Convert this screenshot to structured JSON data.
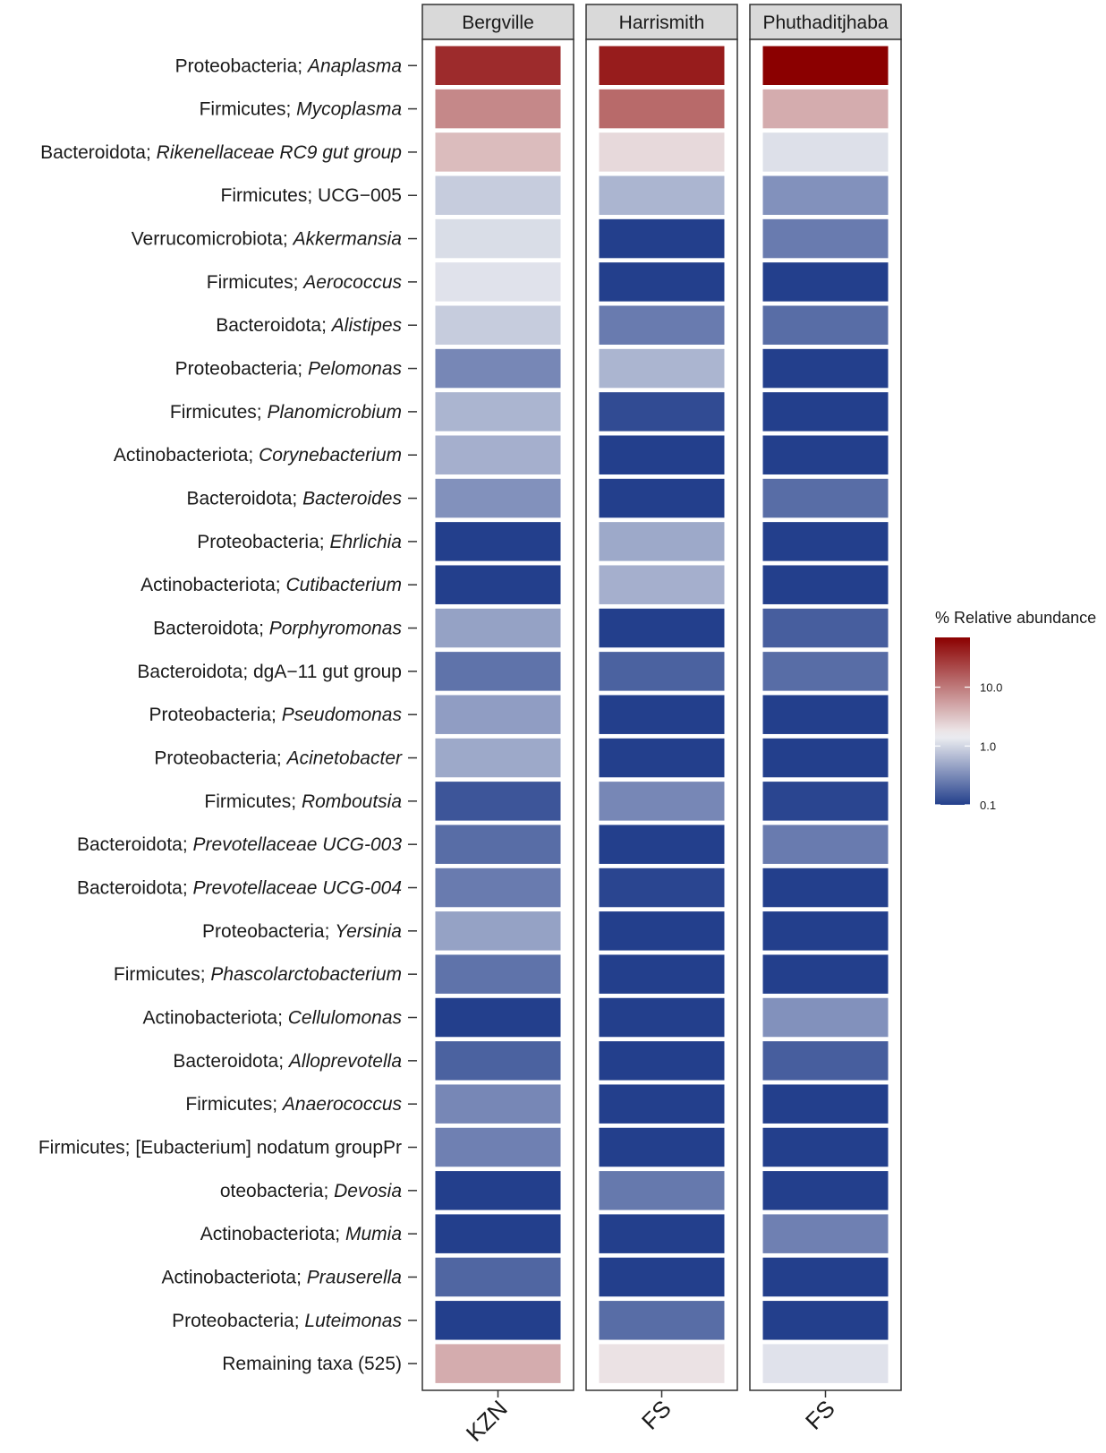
{
  "chart_data": {
    "type": "heatmap",
    "facets": [
      {
        "name": "Bergville",
        "x_label": "KZN"
      },
      {
        "name": "Harrismith",
        "x_label": "FS"
      },
      {
        "name": "Phuthaditjhaba",
        "x_label": "FS"
      }
    ],
    "rows": [
      {
        "label": "Proteobacteria; ",
        "italic": "Anaplasma"
      },
      {
        "label": "Firmicutes; ",
        "italic": "Mycoplasma"
      },
      {
        "label": "Bacteroidota; ",
        "italic": "Rikenellaceae RC9 gut group"
      },
      {
        "label": "Firmicutes; UCG−005",
        "italic": ""
      },
      {
        "label": "Verrucomicrobiota; ",
        "italic": "Akkermansia"
      },
      {
        "label": "Firmicutes; ",
        "italic": "Aerococcus"
      },
      {
        "label": "Bacteroidota; ",
        "italic": "Alistipes"
      },
      {
        "label": "Proteobacteria; ",
        "italic": "Pelomonas"
      },
      {
        "label": "Firmicutes; ",
        "italic": "Planomicrobium"
      },
      {
        "label": "Actinobacteriota; ",
        "italic": "Corynebacterium"
      },
      {
        "label": "Bacteroidota; ",
        "italic": "Bacteroides"
      },
      {
        "label": "Proteobacteria; ",
        "italic": "Ehrlichia"
      },
      {
        "label": "Actinobacteriota; ",
        "italic": "Cutibacterium"
      },
      {
        "label": "Bacteroidota; ",
        "italic": "Porphyromonas"
      },
      {
        "label": "Bacteroidota; dgA−11 gut group",
        "italic": ""
      },
      {
        "label": "Proteobacteria; ",
        "italic": "Pseudomonas"
      },
      {
        "label": "Proteobacteria; ",
        "italic": "Acinetobacter"
      },
      {
        "label": "Firmicutes; ",
        "italic": "Romboutsia"
      },
      {
        "label": "Bacteroidota; ",
        "italic": "Prevotellaceae UCG-003"
      },
      {
        "label": "Bacteroidota; ",
        "italic": "Prevotellaceae UCG-004"
      },
      {
        "label": "Proteobacteria; ",
        "italic": "Yersinia"
      },
      {
        "label": "Firmicutes; ",
        "italic": "Phascolarctobacterium"
      },
      {
        "label": "Actinobacteriota; ",
        "italic": "Cellulomonas"
      },
      {
        "label": "Bacteroidota; ",
        "italic": "Alloprevotella"
      },
      {
        "label": "Firmicutes; ",
        "italic": "Anaerococcus"
      },
      {
        "label": "Firmicutes; [Eubacterium] nodatum groupPr",
        "italic": ""
      },
      {
        "label": "oteobacteria; ",
        "italic": "Devosia"
      },
      {
        "label": "Actinobacteriota; ",
        "italic": "Mumia"
      },
      {
        "label": "Actinobacteriota; ",
        "italic": "Prauserella"
      },
      {
        "label": "Proteobacteria; ",
        "italic": "Luteimonas"
      },
      {
        "label": "Remaining taxa (525)",
        "italic": ""
      }
    ],
    "values": [
      [
        35,
        45,
        70
      ],
      [
        8,
        13,
        4.5
      ],
      [
        3.5,
        2.2,
        1.15
      ],
      [
        0.85,
        0.6,
        0.35
      ],
      [
        1.1,
        0.1,
        0.25
      ],
      [
        1.2,
        0.1,
        0.1
      ],
      [
        0.85,
        0.25,
        0.2
      ],
      [
        0.3,
        0.6,
        0.1
      ],
      [
        0.6,
        0.12,
        0.1
      ],
      [
        0.55,
        0.1,
        0.1
      ],
      [
        0.35,
        0.1,
        0.2
      ],
      [
        0.1,
        0.5,
        0.1
      ],
      [
        0.1,
        0.55,
        0.1
      ],
      [
        0.45,
        0.1,
        0.16
      ],
      [
        0.22,
        0.17,
        0.2
      ],
      [
        0.42,
        0.1,
        0.1
      ],
      [
        0.5,
        0.1,
        0.1
      ],
      [
        0.14,
        0.3,
        0.11
      ],
      [
        0.2,
        0.1,
        0.25
      ],
      [
        0.25,
        0.11,
        0.1
      ],
      [
        0.45,
        0.1,
        0.1
      ],
      [
        0.22,
        0.1,
        0.1
      ],
      [
        0.1,
        0.1,
        0.35
      ],
      [
        0.17,
        0.1,
        0.16
      ],
      [
        0.3,
        0.1,
        0.1
      ],
      [
        0.27,
        0.1,
        0.1
      ],
      [
        0.1,
        0.24,
        0.1
      ],
      [
        0.1,
        0.1,
        0.27
      ],
      [
        0.18,
        0.1,
        0.1
      ],
      [
        0.1,
        0.2,
        0.1
      ],
      [
        4.5,
        1.9,
        1.2
      ]
    ],
    "color_scale": {
      "type": "log10",
      "domain": [
        0.1,
        70
      ],
      "low": "#233f8c",
      "mid": "#f1f1f3",
      "mid_value": 1.5,
      "high": "#8b0000"
    },
    "legend": {
      "title": "% Relative abundance",
      "ticks": [
        "10.0",
        "1.0",
        "0.1"
      ],
      "tick_values": [
        10,
        1,
        0.1
      ],
      "position": "right"
    }
  }
}
